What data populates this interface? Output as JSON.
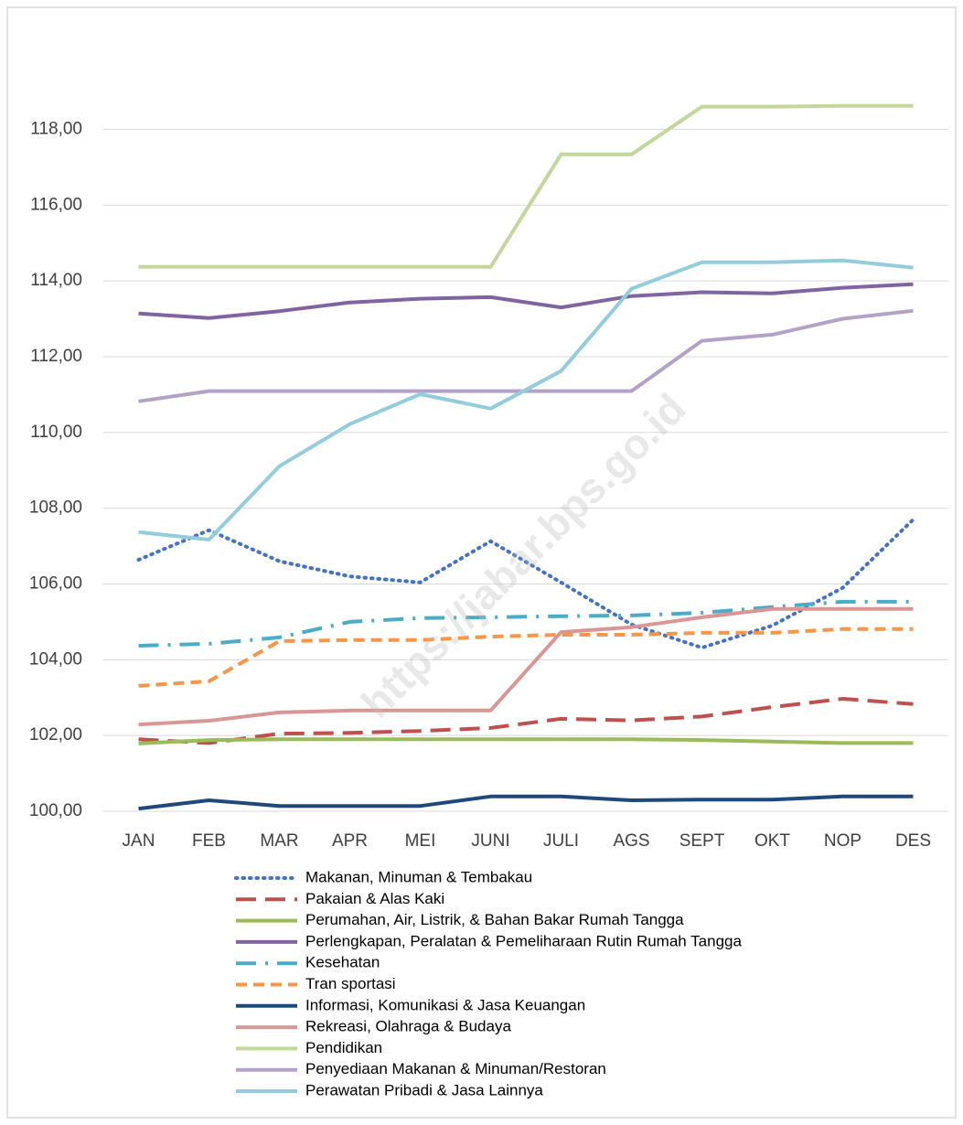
{
  "chart_data": {
    "type": "line",
    "categories": [
      "JAN",
      "FEB",
      "MAR",
      "APR",
      "MEI",
      "JUNI",
      "JULI",
      "AGS",
      "SEPT",
      "OKT",
      "NOP",
      "DES"
    ],
    "ylim": [
      100,
      119
    ],
    "yticks": [
      {
        "value": 100,
        "label": "100,00"
      },
      {
        "value": 102,
        "label": "102,00"
      },
      {
        "value": 104,
        "label": "104,00"
      },
      {
        "value": 106,
        "label": "106,00"
      },
      {
        "value": 108,
        "label": "108,00"
      },
      {
        "value": 110,
        "label": "110,00"
      },
      {
        "value": 112,
        "label": "112,00"
      },
      {
        "value": 114,
        "label": "114,00"
      },
      {
        "value": 116,
        "label": "116,00"
      },
      {
        "value": 118,
        "label": "118,00"
      }
    ],
    "grid": true,
    "legend": "bottom",
    "watermark": "https://jabar.bps.go.id",
    "series": [
      {
        "name": "Makanan, Minuman & Tembakau",
        "color": "#4472c4",
        "style": "dotted",
        "values": [
          106.64,
          107.42,
          106.6,
          106.2,
          106.04,
          107.13,
          106.04,
          104.93,
          104.32,
          104.9,
          105.9,
          107.7
        ]
      },
      {
        "name": "Pakaian & Alas Kaki",
        "color": "#c0504d",
        "style": "dashed",
        "values": [
          101.9,
          101.8,
          102.05,
          102.07,
          102.12,
          102.2,
          102.44,
          102.4,
          102.5,
          102.75,
          102.97,
          102.83
        ]
      },
      {
        "name": "Perumahan, Air, Listrik, & Bahan Bakar Rumah Tangga",
        "color": "#9bbb59",
        "style": "solid",
        "values": [
          101.79,
          101.88,
          101.9,
          101.9,
          101.9,
          101.9,
          101.9,
          101.9,
          101.88,
          101.84,
          101.8,
          101.8
        ]
      },
      {
        "name": "Perlengkapan, Peralatan & Pemeliharaan Rutin Rumah Tangga",
        "color": "#8064a2",
        "style": "solid",
        "values": [
          113.14,
          113.02,
          113.2,
          113.43,
          113.53,
          113.57,
          113.3,
          113.6,
          113.7,
          113.67,
          113.82,
          113.91
        ]
      },
      {
        "name": "Kesehatan",
        "color": "#4bacc6",
        "style": "dashdot",
        "values": [
          104.37,
          104.42,
          104.59,
          105.0,
          105.1,
          105.12,
          105.15,
          105.17,
          105.24,
          105.39,
          105.53,
          105.53
        ]
      },
      {
        "name": "Tran sportasi",
        "color": "#f79646",
        "style": "shortdash",
        "values": [
          103.31,
          103.43,
          104.49,
          104.52,
          104.52,
          104.61,
          104.66,
          104.66,
          104.71,
          104.71,
          104.81,
          104.81
        ]
      },
      {
        "name": "Informasi, Komunikasi & Jasa Keuangan",
        "color": "#1f497d",
        "style": "solid",
        "values": [
          100.07,
          100.29,
          100.14,
          100.14,
          100.14,
          100.39,
          100.39,
          100.29,
          100.31,
          100.31,
          100.39,
          100.39
        ]
      },
      {
        "name": "Rekreasi, Olahraga & Budaya",
        "color": "#d99694",
        "style": "solid",
        "values": [
          102.29,
          102.39,
          102.61,
          102.66,
          102.66,
          102.66,
          104.73,
          104.86,
          105.12,
          105.34,
          105.34,
          105.34
        ]
      },
      {
        "name": "Pendidikan",
        "color": "#c3d69b",
        "style": "solid",
        "values": [
          114.37,
          114.37,
          114.37,
          114.37,
          114.37,
          114.37,
          117.34,
          117.34,
          118.6,
          118.6,
          118.62,
          118.62
        ]
      },
      {
        "name": "Penyediaan Makanan & Minuman/Restoran",
        "color": "#b3a2c7",
        "style": "solid",
        "values": [
          110.82,
          111.09,
          111.09,
          111.09,
          111.09,
          111.09,
          111.09,
          111.09,
          112.42,
          112.58,
          113.0,
          113.21
        ]
      },
      {
        "name": "Perawatan Pribadi & Jasa Lainnya",
        "color": "#93cddd",
        "style": "solid",
        "values": [
          107.37,
          107.17,
          109.11,
          110.22,
          111.01,
          110.63,
          111.62,
          113.79,
          114.49,
          114.49,
          114.54,
          114.35
        ]
      }
    ]
  }
}
